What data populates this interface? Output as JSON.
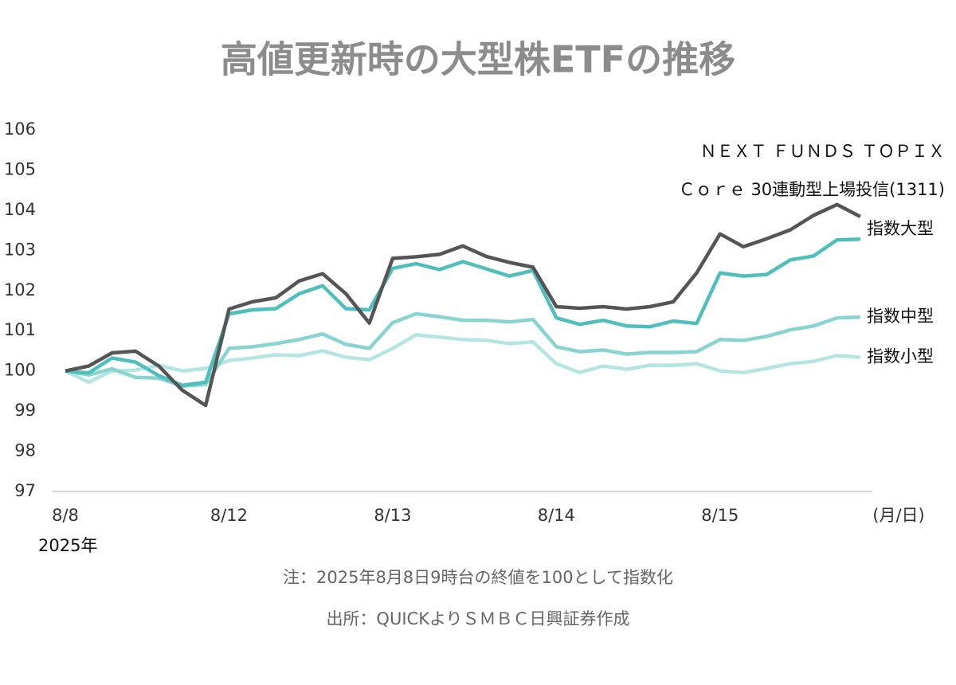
{
  "chart_data": {
    "type": "line",
    "title": "高値更新時の大型株ETFの推移",
    "x_label": "(月/日)",
    "annotations": [
      "2025年",
      "注：2025年8月8日9時台の終値を100として指数化",
      "出所：QUICKよりＳＭＢＣ日興証券作成"
    ],
    "categories": [
      "8/8",
      null,
      null,
      null,
      null,
      null,
      null,
      "8/12",
      null,
      null,
      null,
      null,
      null,
      null,
      "8/13",
      null,
      null,
      null,
      null,
      null,
      null,
      "8/14",
      null,
      null,
      null,
      null,
      null,
      null,
      "8/15",
      null,
      null,
      null,
      null,
      null,
      null
    ],
    "ylim": [
      97,
      106
    ],
    "yticks": [
      97,
      98,
      99,
      100,
      101,
      102,
      103,
      104,
      105,
      106
    ],
    "grid": false,
    "series": [
      {
        "name": "ＮＥＸＴ ＦＵＮＤＳ ＴＯＰＩＸ\nＣｏｒｅ 30連動型上場投信(1311)",
        "color": "#555555",
        "values": [
          100,
          100.12,
          100.45,
          100.49,
          100.12,
          99.52,
          99.14,
          101.54,
          101.72,
          101.82,
          102.24,
          102.42,
          101.92,
          101.19,
          102.8,
          102.84,
          102.9,
          103.11,
          102.85,
          102.7,
          102.58,
          101.6,
          101.56,
          101.6,
          101.54,
          101.6,
          101.72,
          102.44,
          103.41,
          103.09,
          103.29,
          103.51,
          103.87,
          104.14,
          103.84
        ]
      },
      {
        "name": "指数大型",
        "color": "#4fbfbd",
        "values": [
          100,
          99.95,
          100.32,
          100.22,
          99.88,
          99.64,
          99.72,
          101.42,
          101.52,
          101.55,
          101.92,
          102.12,
          101.55,
          101.52,
          102.55,
          102.67,
          102.52,
          102.72,
          102.54,
          102.36,
          102.5,
          101.32,
          101.16,
          101.26,
          101.12,
          101.1,
          101.24,
          101.18,
          102.44,
          102.36,
          102.4,
          102.76,
          102.86,
          103.26,
          103.28
        ]
      },
      {
        "name": "指数中型",
        "color": "#88d4d0",
        "values": [
          100,
          99.9,
          100.05,
          99.84,
          99.82,
          99.62,
          99.66,
          100.56,
          100.6,
          100.68,
          100.78,
          100.92,
          100.66,
          100.56,
          101.2,
          101.42,
          101.35,
          101.26,
          101.26,
          101.22,
          101.28,
          100.6,
          100.48,
          100.52,
          100.42,
          100.46,
          100.46,
          100.48,
          100.78,
          100.76,
          100.86,
          101.02,
          101.12,
          101.32,
          101.34
        ]
      },
      {
        "name": "指数小型",
        "color": "#b3e6e3",
        "values": [
          100,
          99.72,
          100,
          100.02,
          100.14,
          100,
          100.06,
          100.26,
          100.32,
          100.4,
          100.38,
          100.5,
          100.34,
          100.28,
          100.56,
          100.9,
          100.84,
          100.78,
          100.76,
          100.68,
          100.72,
          100.18,
          99.96,
          100.12,
          100.04,
          100.14,
          100.14,
          100.18,
          100,
          99.96,
          100.06,
          100.18,
          100.24,
          100.38,
          100.34
        ]
      }
    ]
  }
}
